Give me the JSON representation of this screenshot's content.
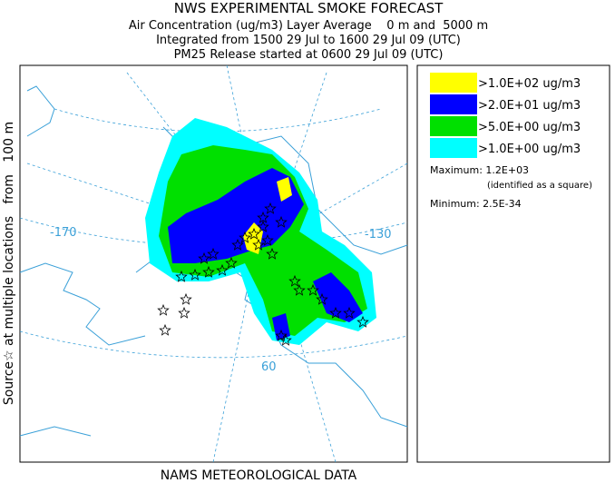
{
  "header": {
    "title": "NWS EXPERIMENTAL SMOKE FORECAST",
    "lines": [
      "Air Concentration (ug/m3) Layer Average    0 m and  5000 m",
      "Integrated from 1500 29 Jul to 1600 29 Jul 09 (UTC)",
      "PM25 Release started at 0600 29 Jul 09 (UTC)"
    ]
  },
  "side_label": "Source☆ at multiple locations   from   100 m",
  "footer": "NAMS METEOROLOGICAL DATA",
  "map": {
    "labels": [
      "-170",
      "-130",
      "60"
    ]
  },
  "legend": {
    "items": [
      {
        "label": ">1.0E+02 ug/m3",
        "color": "#ffff00"
      },
      {
        "label": ">2.0E+01 ug/m3",
        "color": "#0000ff"
      },
      {
        "label": ">5.0E+00 ug/m3",
        "color": "#00e000"
      },
      {
        "label": ">1.0E+00 ug/m3",
        "color": "#00ffff"
      }
    ],
    "maximum": "Maximum: 1.2E+03",
    "maximum_note": "(identified as a square)",
    "minimum": "Minimum: 2.5E-34"
  }
}
